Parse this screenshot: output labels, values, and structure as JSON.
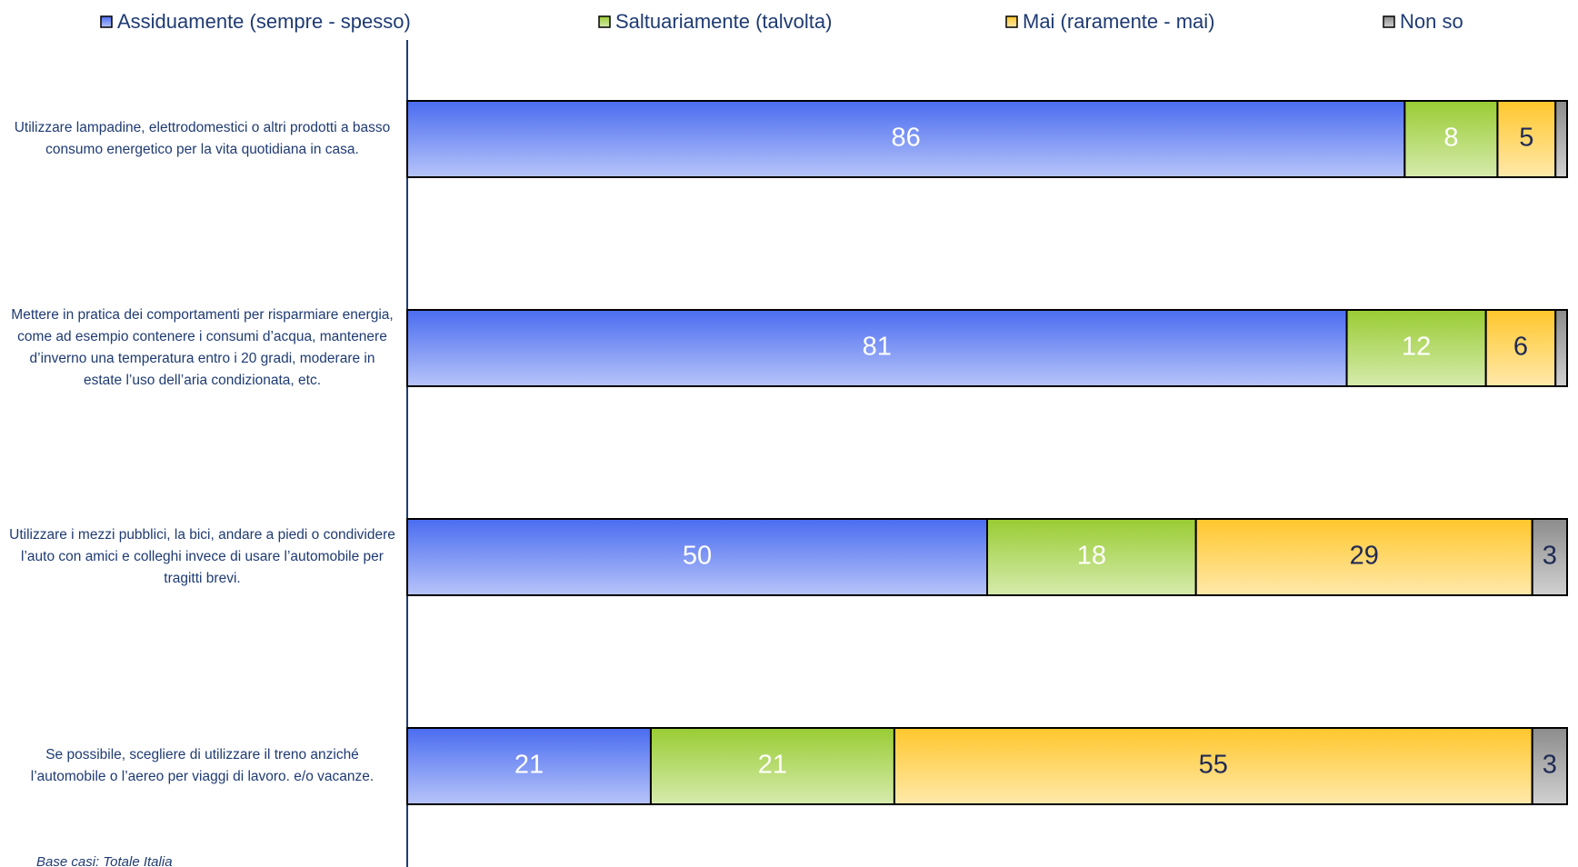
{
  "chart_data": {
    "type": "stacked-barh",
    "categories": [
      "Utilizzare lampadine, elettrodomestici o altri prodotti a basso consumo energetico per la vita quotidiana in casa.",
      "Mettere in pratica dei comportamenti per risparmiare energia, come ad esempio contenere i consumi d’acqua, mantenere d’inverno una temperatura entro i 20 gradi, moderare in estate l’uso dell’aria condizionata, etc.",
      "Utilizzare i mezzi pubblici, la bici, andare a piedi o condividere l’auto con amici e colleghi invece di usare l’automobile per tragitti brevi.",
      "Se possibile, scegliere di utilizzare il treno anziché l’automobile o l’aereo per viaggi di lavoro. e/o vacanze."
    ],
    "series": [
      {
        "name": "Assiduamente (sempre - spesso)",
        "color": "#4a6cf0",
        "values": [
          86,
          81,
          50,
          21
        ]
      },
      {
        "name": "Saltuariamente (talvolta)",
        "color": "#99cc33",
        "values": [
          8,
          12,
          18,
          21
        ]
      },
      {
        "name": "Mai (raramente - mai)",
        "color": "#ffc72c",
        "values": [
          5,
          6,
          29,
          55
        ]
      },
      {
        "name": "Non so",
        "color": "#8c8c8c",
        "values": [
          1,
          1,
          3,
          3
        ]
      }
    ],
    "xlim": [
      0,
      100
    ],
    "legend": "top",
    "note": "Base casi: Totale Italia"
  }
}
